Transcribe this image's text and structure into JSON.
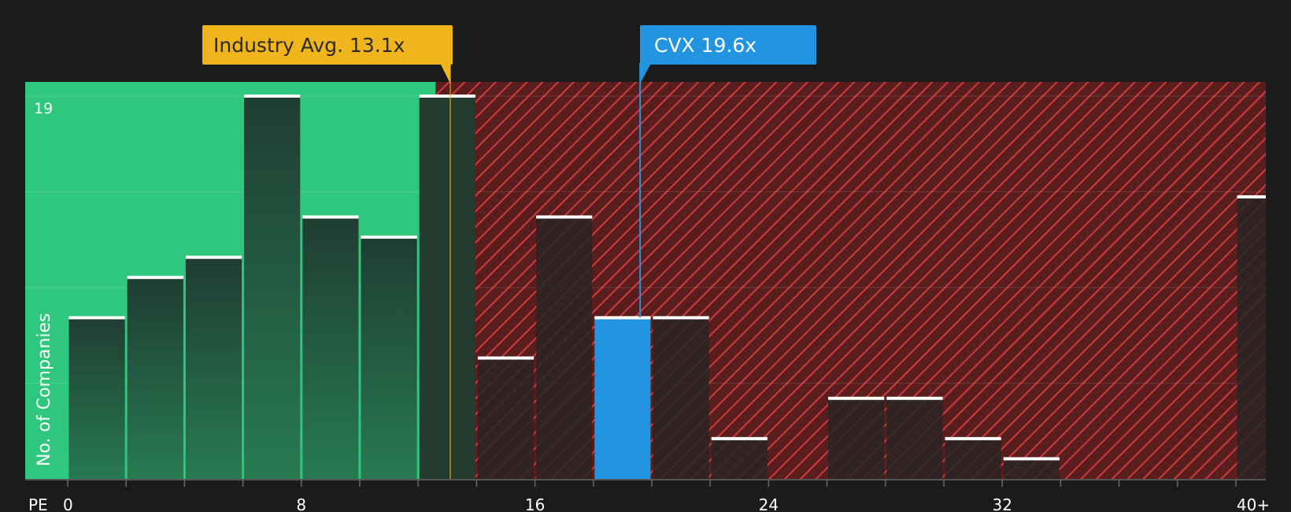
{
  "chart_data": {
    "type": "bar",
    "xlabel": "PE",
    "ylabel": "No. of Companies",
    "x_ticks": [
      "0",
      "8",
      "16",
      "24",
      "32",
      "40+"
    ],
    "y_max_label": "19",
    "ylim": [
      0,
      19
    ],
    "bin_width": 2,
    "bins": [
      {
        "start": 0,
        "end": 2,
        "value": 8
      },
      {
        "start": 2,
        "end": 4,
        "value": 10
      },
      {
        "start": 4,
        "end": 6,
        "value": 11
      },
      {
        "start": 6,
        "end": 8,
        "value": 19
      },
      {
        "start": 8,
        "end": 10,
        "value": 13
      },
      {
        "start": 10,
        "end": 12,
        "value": 12
      },
      {
        "start": 12,
        "end": 14,
        "value": 19
      },
      {
        "start": 14,
        "end": 16,
        "value": 6
      },
      {
        "start": 16,
        "end": 18,
        "value": 13
      },
      {
        "start": 18,
        "end": 20,
        "value": 8,
        "highlight": true
      },
      {
        "start": 20,
        "end": 22,
        "value": 8
      },
      {
        "start": 22,
        "end": 24,
        "value": 2
      },
      {
        "start": 24,
        "end": 26,
        "value": 0
      },
      {
        "start": 26,
        "end": 28,
        "value": 4
      },
      {
        "start": 28,
        "end": 30,
        "value": 4
      },
      {
        "start": 30,
        "end": 32,
        "value": 2
      },
      {
        "start": 32,
        "end": 34,
        "value": 1
      },
      {
        "start": 34,
        "end": 36,
        "value": 0
      },
      {
        "start": 36,
        "end": 38,
        "value": 0
      },
      {
        "start": 38,
        "end": 40,
        "value": 0
      },
      {
        "start": 40,
        "end": 41,
        "value": 14
      }
    ],
    "industry_avg": {
      "label": "Industry Avg. 13.1x",
      "value": 13.1
    },
    "company": {
      "label": "CVX 19.6x",
      "value": 19.6
    },
    "fair_zone_end": 12.6,
    "colors": {
      "background": "#1b1b1b",
      "green_zone": "#2ec77d",
      "red_zone": "#8b2a2a",
      "hatch": "#c93a3a",
      "industry": "#f0b41c",
      "company": "#2394e0"
    }
  }
}
